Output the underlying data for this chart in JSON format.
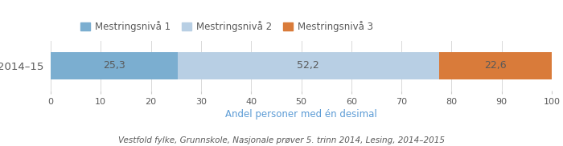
{
  "categories": [
    "2014–15"
  ],
  "segments": [
    {
      "label": "Mestringsnivå 1",
      "value": 25.3,
      "color": "#7baed0"
    },
    {
      "label": "Mestringsnivå 2",
      "value": 52.2,
      "color": "#b8cfe4"
    },
    {
      "label": "Mestringsnivå 3",
      "value": 22.6,
      "color": "#d97b3a"
    }
  ],
  "xlabel": "Andel personer med én desimal",
  "xlabel_color": "#5b9bd5",
  "xlim": [
    0,
    100
  ],
  "xticks": [
    0,
    10,
    20,
    30,
    40,
    50,
    60,
    70,
    80,
    90,
    100
  ],
  "bar_height": 0.55,
  "footnote": "Vestfold fylke, Grunnskole, Nasjonale prøver 5. trinn 2014, Lesing, 2014–2015",
  "legend_labels": [
    "Mestringsnivå 1",
    "Mestringsnivå 2",
    "Mestringsnivå 3"
  ],
  "legend_colors": [
    "#7baed0",
    "#b8cfe4",
    "#d97b3a"
  ],
  "background_color": "#ffffff",
  "text_color": "#595959",
  "bar_label_fontsize": 9,
  "tick_fontsize": 8,
  "footnote_fontsize": 7.5,
  "legend_fontsize": 8.5,
  "xlabel_fontsize": 8.5,
  "ylabel_fontsize": 9.5
}
